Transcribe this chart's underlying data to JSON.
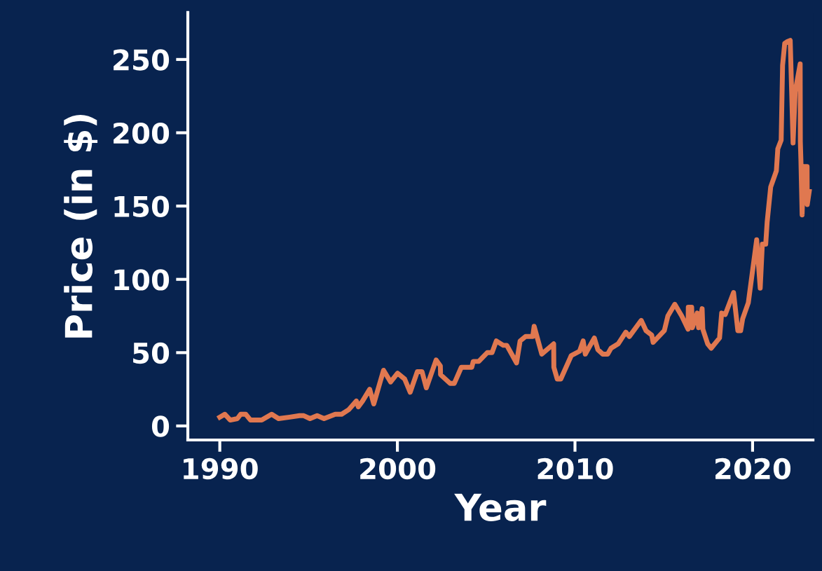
{
  "chart_data": {
    "type": "line",
    "xlabel": "Year",
    "ylabel": "Price (in $)",
    "x": [
      1990.0,
      1990.28,
      1990.59,
      1990.99,
      1991.18,
      1991.46,
      1991.73,
      1992.36,
      1992.92,
      1993.31,
      1993.94,
      1994.49,
      1994.73,
      1995.08,
      1995.48,
      1995.87,
      1996.5,
      1996.86,
      1997.25,
      1997.69,
      1997.8,
      1998.04,
      1998.44,
      1998.67,
      1999.22,
      1999.62,
      2000.01,
      2000.41,
      2000.72,
      2001.12,
      2001.39,
      2001.63,
      2002.18,
      2002.42,
      2002.43,
      2002.97,
      2003.2,
      2003.6,
      2004.19,
      2004.27,
      2004.58,
      2005.06,
      2005.33,
      2005.57,
      2005.96,
      2006.16,
      2006.71,
      2006.91,
      2007.22,
      2007.62,
      2007.7,
      2008.13,
      2008.8,
      2008.81,
      2009.0,
      2009.2,
      2009.79,
      2010.26,
      2010.46,
      2010.58,
      2011.09,
      2011.29,
      2011.56,
      2011.84,
      2012.03,
      2012.43,
      2012.86,
      2013.06,
      2013.73,
      2014.0,
      2014.32,
      2014.4,
      2015.03,
      2015.23,
      2015.62,
      2016.01,
      2016.37,
      2016.38,
      2016.57,
      2016.61,
      2016.88,
      2016.96,
      2017.16,
      2017.2,
      2017.47,
      2017.67,
      2018.14,
      2018.26,
      2018.46,
      2018.93,
      2019.17,
      2019.33,
      2019.44,
      2019.76,
      2020.23,
      2020.43,
      2020.55,
      2020.74,
      2020.82,
      2021.02,
      2021.34,
      2021.42,
      2021.61,
      2021.69,
      2021.81,
      2021.93,
      2022.12,
      2022.2,
      2022.28,
      2022.4,
      2022.68,
      2022.69,
      2022.72,
      2022.79,
      2022.87,
      2023.07,
      2023.08,
      2023.19
    ],
    "series": [
      {
        "color": "#e07850",
        "values": [
          6,
          8,
          4,
          5,
          8,
          8,
          4,
          4,
          8,
          5,
          6,
          7,
          7,
          5,
          7,
          5,
          8,
          8,
          11,
          17,
          13,
          17,
          25,
          15,
          38,
          30,
          36,
          32,
          23,
          37,
          37,
          26,
          45,
          41,
          35,
          29,
          29,
          40,
          40,
          44,
          44,
          50,
          50,
          58,
          55,
          55,
          43,
          58,
          61,
          61,
          68,
          49,
          56,
          40,
          32,
          32,
          48,
          51,
          58,
          49,
          60,
          52,
          49,
          49,
          53,
          56,
          64,
          61,
          72,
          65,
          62,
          57,
          65,
          75,
          83,
          75,
          66,
          81,
          81,
          67,
          77,
          67,
          80,
          66,
          56,
          53,
          60,
          77,
          76,
          91,
          65,
          65,
          73,
          84,
          127,
          94,
          124,
          124,
          139,
          163,
          174,
          189,
          195,
          246,
          261,
          262,
          263,
          228,
          193,
          228,
          247,
          194,
          182,
          144,
          177,
          177,
          151,
          160
        ]
      }
    ],
    "xlim": [
      1988.2,
      2023.4
    ],
    "ylim": [
      -9.6,
      282
    ],
    "xticks": [
      1990,
      2000,
      2010,
      2020
    ],
    "yticks": [
      0,
      50,
      100,
      150,
      200,
      250
    ],
    "grid": false,
    "legend": false,
    "line_style": "solid",
    "marker": "none"
  }
}
